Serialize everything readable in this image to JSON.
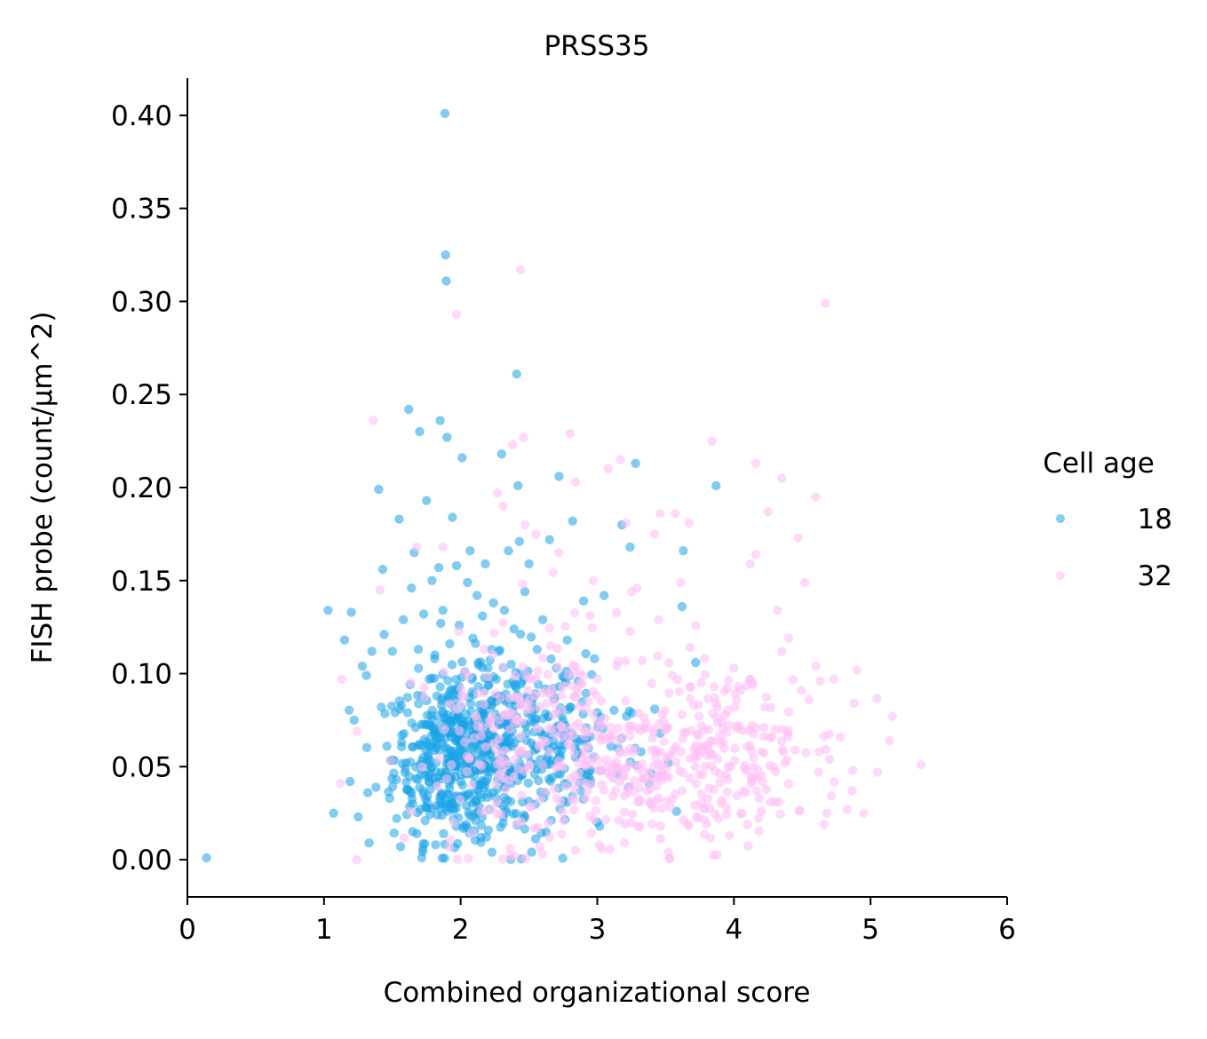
{
  "chart_data": {
    "type": "scatter",
    "title": "PRSS35",
    "xlabel": "Combined organizational score",
    "ylabel": "FISH probe (count/μm^2)",
    "xlim": [
      0,
      6
    ],
    "ylim": [
      -0.02,
      0.42
    ],
    "xticks": [
      0,
      1,
      2,
      3,
      4,
      5,
      6
    ],
    "xtick_labels": [
      "0",
      "1",
      "2",
      "3",
      "4",
      "5",
      "6"
    ],
    "yticks": [
      0.0,
      0.05,
      0.1,
      0.15,
      0.2,
      0.25,
      0.3,
      0.35,
      0.4
    ],
    "ytick_labels": [
      "0.00",
      "0.05",
      "0.10",
      "0.15",
      "0.20",
      "0.25",
      "0.30",
      "0.35",
      "0.40"
    ],
    "grid": false,
    "legend": {
      "title": "Cell age",
      "placement": "right"
    },
    "series": [
      {
        "name": "18",
        "color": "#1aa3e8",
        "points": [
          [
            0.14,
            0.001
          ],
          [
            1.03,
            0.134
          ],
          [
            1.07,
            0.025
          ],
          [
            1.15,
            0.118
          ],
          [
            1.19,
            0.042
          ],
          [
            1.2,
            0.133
          ],
          [
            1.22,
            0.075
          ],
          [
            1.25,
            0.023
          ],
          [
            1.28,
            0.104
          ],
          [
            1.31,
            0.099
          ],
          [
            1.32,
            0.036
          ],
          [
            1.33,
            0.009
          ],
          [
            1.35,
            0.112
          ],
          [
            1.38,
            0.039
          ],
          [
            1.4,
            0.199
          ],
          [
            1.42,
            0.082
          ],
          [
            1.43,
            0.156
          ],
          [
            1.44,
            0.121
          ],
          [
            1.46,
            0.061
          ],
          [
            1.48,
            0.033
          ],
          [
            1.5,
            0.112
          ],
          [
            1.52,
            0.079
          ],
          [
            1.53,
            0.043
          ],
          [
            1.55,
            0.183
          ],
          [
            1.56,
            0.007
          ],
          [
            1.57,
            0.067
          ],
          [
            1.58,
            0.129
          ],
          [
            1.6,
            0.052
          ],
          [
            1.62,
            0.242
          ],
          [
            1.63,
            0.094
          ],
          [
            1.64,
            0.146
          ],
          [
            1.65,
            0.03
          ],
          [
            1.66,
            0.165
          ],
          [
            1.67,
            0.071
          ],
          [
            1.68,
            0.014
          ],
          [
            1.69,
            0.113
          ],
          [
            1.7,
            0.23
          ],
          [
            1.71,
            0.046
          ],
          [
            1.72,
            0.088
          ],
          [
            1.73,
            0.132
          ],
          [
            1.74,
            0.021
          ],
          [
            1.75,
            0.193
          ],
          [
            1.76,
            0.062
          ],
          [
            1.77,
            0.097
          ],
          [
            1.78,
            0.038
          ],
          [
            1.79,
            0.15
          ],
          [
            1.8,
            0.071
          ],
          [
            1.81,
            0.108
          ],
          [
            1.82,
            0.052
          ],
          [
            1.83,
            0.024
          ],
          [
            1.84,
            0.157
          ],
          [
            1.85,
            0.236
          ],
          [
            1.86,
            0.083
          ],
          [
            1.87,
            0.134
          ],
          [
            1.88,
            0.045
          ],
          [
            1.885,
            0.401
          ],
          [
            1.89,
            0.325
          ],
          [
            1.895,
            0.311
          ],
          [
            1.9,
            0.227
          ],
          [
            1.91,
            0.068
          ],
          [
            1.92,
            0.116
          ],
          [
            1.93,
            0.031
          ],
          [
            1.94,
            0.184
          ],
          [
            1.95,
            0.091
          ],
          [
            1.96,
            0.055
          ],
          [
            1.97,
            0.158
          ],
          [
            1.98,
            0.077
          ],
          [
            1.99,
            0.126
          ],
          [
            2.0,
            0.042
          ],
          [
            2.01,
            0.216
          ],
          [
            2.02,
            0.064
          ],
          [
            2.03,
            0.101
          ],
          [
            2.04,
            0.019
          ],
          [
            2.05,
            0.149
          ],
          [
            2.06,
            0.087
          ],
          [
            2.07,
            0.166
          ],
          [
            2.08,
            0.053
          ],
          [
            2.09,
            0.119
          ],
          [
            2.1,
            0.036
          ],
          [
            2.11,
            0.071
          ],
          [
            2.12,
            0.142
          ],
          [
            2.13,
            0.093
          ],
          [
            2.14,
            0.048
          ],
          [
            2.15,
            0.012
          ],
          [
            2.16,
            0.131
          ],
          [
            2.17,
            0.078
          ],
          [
            2.18,
            0.159
          ],
          [
            2.19,
            0.058
          ],
          [
            2.2,
            0.103
          ],
          [
            2.21,
            0.027
          ],
          [
            2.22,
            0.085
          ],
          [
            2.23,
            0.004
          ],
          [
            2.24,
            0.138
          ],
          [
            2.25,
            0.066
          ],
          [
            2.26,
            0.097
          ],
          [
            2.27,
            0.043
          ],
          [
            2.28,
            0.112
          ],
          [
            2.29,
            0.075
          ],
          [
            2.3,
            0.218
          ],
          [
            2.31,
            0.051
          ],
          [
            2.32,
            0.134
          ],
          [
            2.33,
            0.089
          ],
          [
            2.34,
            0.032
          ],
          [
            2.35,
            0.166
          ],
          [
            2.36,
            0.071
          ],
          [
            2.37,
            0.105
          ],
          [
            2.38,
            0.047
          ],
          [
            2.39,
            0.124
          ],
          [
            2.4,
            0.083
          ],
          [
            2.41,
            0.261
          ],
          [
            2.42,
            0.201
          ],
          [
            2.43,
            0.171
          ],
          [
            2.44,
            0.057
          ],
          [
            2.45,
            0.096
          ],
          [
            2.46,
            0.022
          ],
          [
            2.47,
            0.144
          ],
          [
            2.48,
            0.068
          ],
          [
            2.5,
            0.159
          ],
          [
            2.52,
            0.084
          ],
          [
            2.54,
            0.046
          ],
          [
            2.56,
            0.113
          ],
          [
            2.58,
            0.069
          ],
          [
            2.6,
            0.129
          ],
          [
            2.62,
            0.036
          ],
          [
            2.64,
            0.091
          ],
          [
            2.65,
            0.172
          ],
          [
            2.68,
            0.061
          ],
          [
            2.7,
            0.103
          ],
          [
            2.72,
            0.206
          ],
          [
            2.74,
            0.077
          ],
          [
            2.76,
            0.049
          ],
          [
            2.78,
            0.118
          ],
          [
            2.8,
            0.082
          ],
          [
            2.82,
            0.182
          ],
          [
            2.84,
            0.055
          ],
          [
            2.86,
            0.096
          ],
          [
            2.9,
            0.139
          ],
          [
            2.92,
            0.071
          ],
          [
            2.95,
            0.043
          ],
          [
            2.98,
            0.108
          ],
          [
            3.0,
            0.079
          ],
          [
            3.05,
            0.142
          ],
          [
            3.1,
            0.061
          ],
          [
            3.15,
            0.046
          ],
          [
            3.18,
            0.18
          ],
          [
            3.24,
            0.168
          ],
          [
            3.28,
            0.213
          ],
          [
            3.32,
            0.058
          ],
          [
            3.38,
            0.041
          ],
          [
            3.42,
            0.081
          ],
          [
            3.46,
            0.068
          ],
          [
            3.52,
            0.052
          ],
          [
            3.58,
            0.026
          ],
          [
            3.62,
            0.136
          ],
          [
            3.63,
            0.166
          ],
          [
            3.72,
            0.106
          ],
          [
            3.87,
            0.201
          ]
        ],
        "dense_clusters": [
          {
            "cx": 1.95,
            "cy": 0.055,
            "sx": 0.22,
            "sy": 0.022,
            "n": 380
          },
          {
            "cx": 2.35,
            "cy": 0.06,
            "sx": 0.28,
            "sy": 0.025,
            "n": 220
          },
          {
            "cx": 2.8,
            "cy": 0.06,
            "sx": 0.28,
            "sy": 0.022,
            "n": 90
          }
        ]
      },
      {
        "name": "32",
        "color": "#ffc0f5",
        "points": [
          [
            1.12,
            0.041
          ],
          [
            1.13,
            0.097
          ],
          [
            1.24,
            0.0
          ],
          [
            1.24,
            0.069
          ],
          [
            1.36,
            0.236
          ],
          [
            1.41,
            0.145
          ],
          [
            1.68,
            0.168
          ],
          [
            1.87,
            0.168
          ],
          [
            1.88,
            0.101
          ],
          [
            1.97,
            0.293
          ],
          [
            2.27,
            0.197
          ],
          [
            2.31,
            0.19
          ],
          [
            2.38,
            0.223
          ],
          [
            2.44,
            0.317
          ],
          [
            2.46,
            0.227
          ],
          [
            2.47,
            0.18
          ],
          [
            2.55,
            0.175
          ],
          [
            2.72,
            0.165
          ],
          [
            2.8,
            0.229
          ],
          [
            2.84,
            0.203
          ],
          [
            2.97,
            0.15
          ],
          [
            3.08,
            0.21
          ],
          [
            3.17,
            0.215
          ],
          [
            3.21,
            0.181
          ],
          [
            3.25,
            0.144
          ],
          [
            3.42,
            0.175
          ],
          [
            3.46,
            0.186
          ],
          [
            3.57,
            0.186
          ],
          [
            3.61,
            0.149
          ],
          [
            3.67,
            0.181
          ],
          [
            3.84,
            0.225
          ],
          [
            4.12,
            0.159
          ],
          [
            4.16,
            0.164
          ],
          [
            4.16,
            0.213
          ],
          [
            4.25,
            0.187
          ],
          [
            4.32,
            0.134
          ],
          [
            4.35,
            0.205
          ],
          [
            4.47,
            0.173
          ],
          [
            4.52,
            0.149
          ],
          [
            4.6,
            0.195
          ],
          [
            4.66,
            0.019
          ],
          [
            4.67,
            0.299
          ],
          [
            4.68,
            0.025
          ],
          [
            4.73,
            0.097
          ],
          [
            4.83,
            0.027
          ],
          [
            4.87,
            0.048
          ],
          [
            4.88,
            0.084
          ],
          [
            4.9,
            0.102
          ],
          [
            4.95,
            0.025
          ],
          [
            5.05,
            0.047
          ],
          [
            5.14,
            0.064
          ],
          [
            5.16,
            0.077
          ],
          [
            5.37,
            0.051
          ],
          [
            2.36,
            0.006
          ],
          [
            2.58,
            0.007
          ],
          [
            2.84,
            0.005
          ],
          [
            3.2,
            0.009
          ],
          [
            3.52,
            0.004
          ],
          [
            3.3,
            0.018
          ],
          [
            3.8,
            0.019
          ],
          [
            4.05,
            0.025
          ],
          [
            4.2,
            0.026
          ],
          [
            4.3,
            0.031
          ],
          [
            4.45,
            0.059
          ],
          [
            4.55,
            0.086
          ],
          [
            4.6,
            0.104
          ],
          [
            4.78,
            0.066
          ],
          [
            4.7,
            0.054
          ],
          [
            4.62,
            0.047
          ],
          [
            4.4,
            0.119
          ],
          [
            4.35,
            0.112
          ],
          [
            4.12,
            0.097
          ],
          [
            4.0,
            0.103
          ],
          [
            3.95,
            0.092
          ],
          [
            3.88,
            0.082
          ],
          [
            3.72,
            0.126
          ],
          [
            3.68,
            0.114
          ],
          [
            3.55,
            0.099
          ],
          [
            3.45,
            0.129
          ],
          [
            3.33,
            0.107
          ]
        ],
        "dense_clusters": [
          {
            "cx": 3.3,
            "cy": 0.05,
            "sx": 0.45,
            "sy": 0.02,
            "n": 260
          },
          {
            "cx": 4.05,
            "cy": 0.06,
            "sx": 0.38,
            "sy": 0.022,
            "n": 130
          },
          {
            "cx": 2.4,
            "cy": 0.06,
            "sx": 0.38,
            "sy": 0.028,
            "n": 160
          },
          {
            "cx": 2.8,
            "cy": 0.1,
            "sx": 0.3,
            "sy": 0.02,
            "n": 45
          }
        ]
      }
    ]
  }
}
